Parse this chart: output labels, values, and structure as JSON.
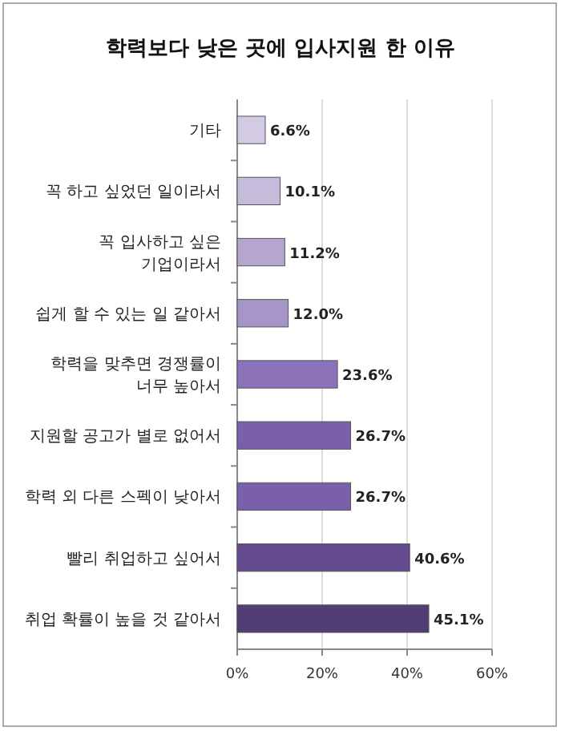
{
  "chart_data": {
    "type": "bar",
    "orientation": "horizontal",
    "title": "학력보다 낮은 곳에 입사지원 한 이유",
    "categories": [
      "기타",
      "꼭 하고 싶었던 일이라서",
      "꼭 입사하고 싶은 기업이라서",
      "쉽게 할 수 있는 일 같아서",
      "학력을 맞추면 경쟁률이 너무 높아서",
      "지원할 공고가 별로 없어서",
      "학력 외 다른 스펙이 낮아서",
      "빨리 취업하고 싶어서",
      "취업 확률이 높을 것 같아서"
    ],
    "values": [
      6.6,
      10.1,
      11.2,
      12.0,
      23.6,
      26.7,
      26.7,
      40.6,
      45.1
    ],
    "colors": [
      "#d3cbe3",
      "#c5bbdb",
      "#b4a6cf",
      "#a695c7",
      "#8b72b9",
      "#7a5fab",
      "#7a5fab",
      "#634a91",
      "#523d75"
    ],
    "value_labels": [
      "6.6%",
      "10.1%",
      "11.2%",
      "12.0%",
      "23.6%",
      "26.7%",
      "26.7%",
      "40.6%",
      "45.1%"
    ],
    "xlim": [
      0,
      60
    ],
    "xticks": [
      {
        "value": 0,
        "label": "0%"
      },
      {
        "value": 20,
        "label": "20%"
      },
      {
        "value": 40,
        "label": "40%"
      },
      {
        "value": 60,
        "label": "60%"
      }
    ],
    "grid": "x"
  }
}
